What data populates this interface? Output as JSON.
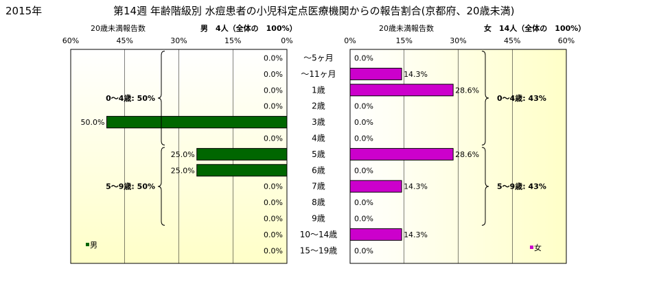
{
  "header": {
    "year": "2015年",
    "title": "第14週 年齢階級別 水痘患者の小児科定点医療機関からの報告割合(京都府、20歳未満)"
  },
  "chart_data": {
    "type": "bar",
    "orientation": "horizontal-butterfly",
    "categories": [
      "～5ヶ月",
      "～11ヶ月",
      "1歳",
      "2歳",
      "3歳",
      "4歳",
      "5歳",
      "6歳",
      "7歳",
      "8歳",
      "9歳",
      "10～14歳",
      "15～19歳"
    ],
    "axis_label": "20歳未満報告数",
    "xlim": [
      0,
      60
    ],
    "tick_labels": [
      "60%",
      "45%",
      "30%",
      "15%",
      "0%"
    ],
    "tick_labels_right": [
      "0%",
      "15%",
      "30%",
      "45%",
      "60%"
    ],
    "grid": true,
    "series": [
      {
        "name": "男",
        "side": "left",
        "summary": "男　4人（全体の　100%）",
        "color": "#006600",
        "values": [
          0.0,
          0.0,
          0.0,
          0.0,
          50.0,
          0.0,
          25.0,
          25.0,
          0.0,
          0.0,
          0.0,
          0.0,
          0.0
        ],
        "value_labels": [
          "0.0%",
          "0.0%",
          "0.0%",
          "0.0%",
          "50.0%",
          "0.0%",
          "25.0%",
          "25.0%",
          "0.0%",
          "0.0%",
          "0.0%",
          "0.0%",
          "0.0%"
        ],
        "brackets": [
          {
            "label": "0～4歳: 50%",
            "from": 0,
            "to": 5
          },
          {
            "label": "5～9歳: 50%",
            "from": 6,
            "to": 10
          }
        ],
        "legend": "男"
      },
      {
        "name": "女",
        "side": "right",
        "summary": "女　14人（全体の　100%）",
        "color": "#cc00cc",
        "values": [
          0.0,
          14.3,
          28.6,
          0.0,
          0.0,
          0.0,
          28.6,
          0.0,
          14.3,
          0.0,
          0.0,
          14.3,
          0.0
        ],
        "value_labels": [
          "0.0%",
          "14.3%",
          "28.6%",
          "0.0%",
          "0.0%",
          "0.0%",
          "28.6%",
          "0.0%",
          "14.3%",
          "0.0%",
          "0.0%",
          "14.3%",
          "0.0%"
        ],
        "brackets": [
          {
            "label": "0～4歳: 43%",
            "from": 0,
            "to": 5
          },
          {
            "label": "5～9歳: 43%",
            "from": 6,
            "to": 10
          }
        ],
        "legend": "女"
      }
    ]
  }
}
